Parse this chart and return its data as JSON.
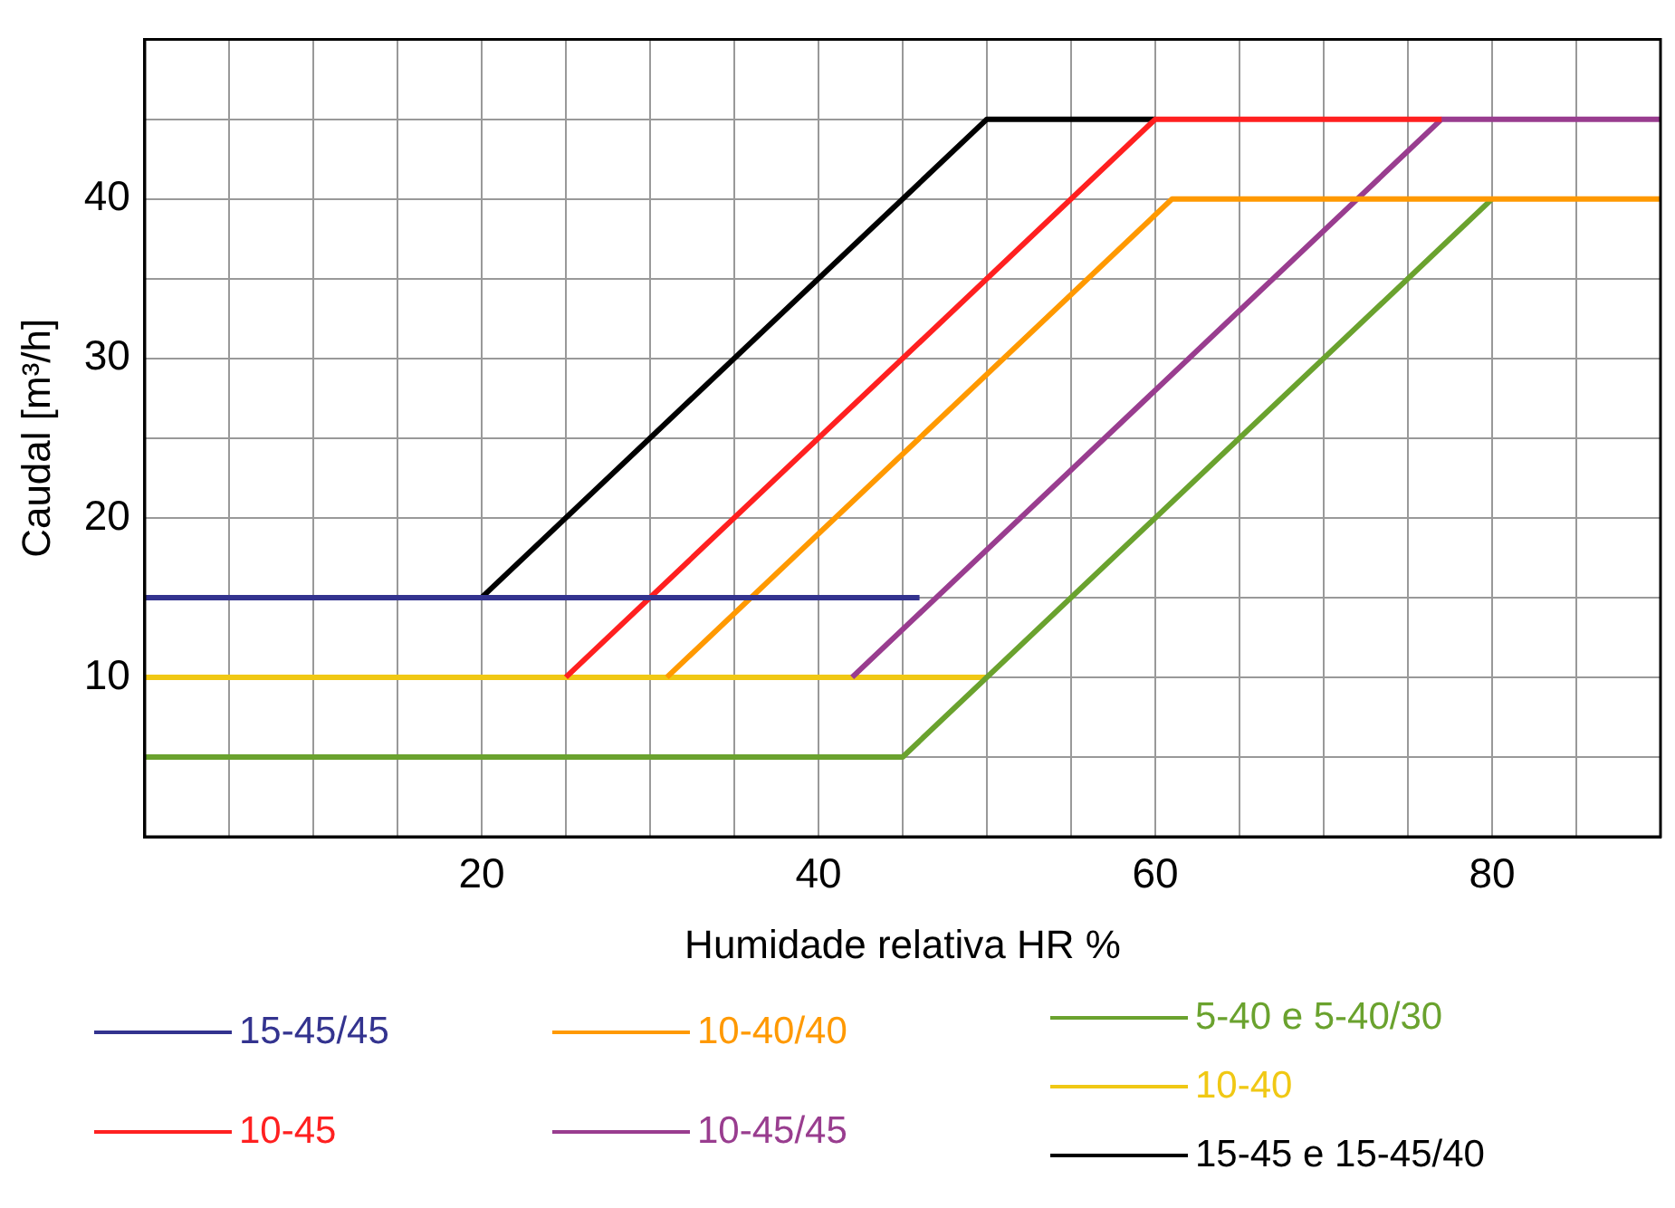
{
  "chart_data": {
    "type": "line",
    "xlabel": "Humidade relativa HR %",
    "ylabel": "Caudal [m³/h]",
    "xlim": [
      0,
      90
    ],
    "ylim": [
      0,
      50
    ],
    "xticks": [
      {
        "value": 0,
        "label": null
      },
      {
        "value": 5,
        "label": null
      },
      {
        "value": 10,
        "label": null
      },
      {
        "value": 15,
        "label": null
      },
      20,
      {
        "value": 25,
        "label": null
      },
      {
        "value": 30,
        "label": null
      },
      {
        "value": 35,
        "label": null
      },
      40,
      {
        "value": 45,
        "label": null
      },
      {
        "value": 50,
        "label": null
      },
      {
        "value": 55,
        "label": null
      },
      60,
      {
        "value": 65,
        "label": null
      },
      {
        "value": 70,
        "label": null
      },
      {
        "value": 75,
        "label": null
      },
      80,
      {
        "value": 85,
        "label": null
      },
      {
        "value": 90,
        "label": null
      }
    ],
    "yticks": [
      {
        "value": 0,
        "label": null
      },
      {
        "value": 5,
        "label": null
      },
      10,
      {
        "value": 15,
        "label": null
      },
      20,
      {
        "value": 25,
        "label": null
      },
      30,
      {
        "value": 35,
        "label": null
      },
      40,
      {
        "value": 45,
        "label": null
      },
      {
        "value": 50,
        "label": null
      }
    ],
    "grid": true,
    "legend": "bottom",
    "marker": "none",
    "line_style": "solid",
    "series": [
      {
        "name": "15-45/45",
        "color": "#33338f",
        "x": [
          0,
          46
        ],
        "values": [
          15,
          15
        ]
      },
      {
        "name": "10-45",
        "color": "#ff2020",
        "x": [
          25,
          60,
          77
        ],
        "values": [
          10,
          45,
          45
        ]
      },
      {
        "name": "10-40/40",
        "color": "#ff9900",
        "x": [
          31,
          61,
          90
        ],
        "values": [
          10,
          40,
          40
        ]
      },
      {
        "name": "10-45/45",
        "color": "#993d8f",
        "x": [
          42,
          77,
          90
        ],
        "values": [
          10,
          45,
          45
        ]
      },
      {
        "name": "5-40 e 5-40/30",
        "color": "#6aa22e",
        "x": [
          0,
          45,
          80
        ],
        "values": [
          5,
          5,
          40
        ]
      },
      {
        "name": "10-40",
        "color": "#f0c814",
        "x": [
          0,
          50
        ],
        "values": [
          10,
          10
        ]
      },
      {
        "name": "15-45 e 15-45/40",
        "color": "#000000",
        "x": [
          20,
          50,
          60
        ],
        "values": [
          15,
          45,
          45
        ]
      }
    ]
  }
}
